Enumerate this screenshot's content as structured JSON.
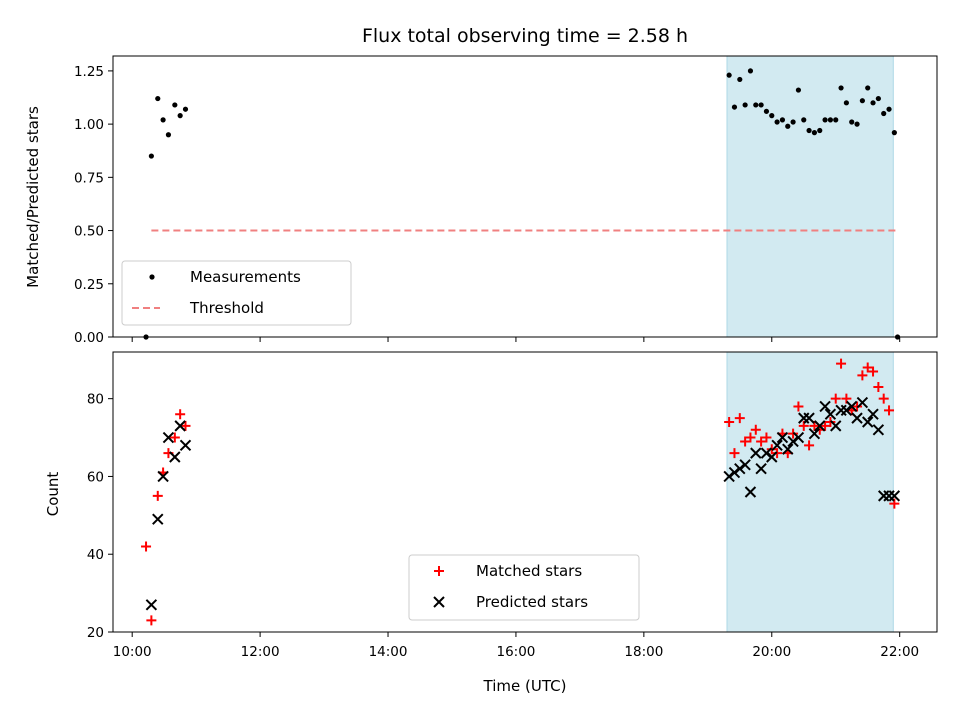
{
  "chart_data": {
    "title": "Flux total observing time = 2.58 h",
    "colors": {
      "measurement": "#000000",
      "threshold": "#f08080",
      "matched": "#ff0000",
      "predicted": "#000000",
      "shade": "#add8e6"
    },
    "x_axis": {
      "label": "Time (UTC)",
      "range": [
        "09:42",
        "22:35"
      ],
      "ticks": [
        "10:00",
        "12:00",
        "14:00",
        "16:00",
        "18:00",
        "20:00",
        "22:00"
      ]
    },
    "shaded_interval": [
      "19:18",
      "21:54"
    ],
    "panels": [
      {
        "type": "scatter",
        "ylabel": "Matched/Predicted stars",
        "ylim": [
          0,
          1.32
        ],
        "yticks": [
          "0.00",
          "0.25",
          "0.50",
          "0.75",
          "1.00",
          "1.25"
        ],
        "legend": {
          "position": "lower-left",
          "entries": [
            "Measurements",
            "Threshold"
          ]
        },
        "series": [
          {
            "name": "Measurements",
            "marker": "dot",
            "x": [
              "10:13",
              "10:18",
              "10:24",
              "10:29",
              "10:34",
              "10:40",
              "10:45",
              "10:50",
              "19:20",
              "19:25",
              "19:30",
              "19:35",
              "19:40",
              "19:45",
              "19:50",
              "19:55",
              "20:00",
              "20:05",
              "20:10",
              "20:15",
              "20:20",
              "20:25",
              "20:30",
              "20:35",
              "20:40",
              "20:45",
              "20:50",
              "20:55",
              "21:00",
              "21:05",
              "21:10",
              "21:15",
              "21:20",
              "21:25",
              "21:30",
              "21:35",
              "21:40",
              "21:45",
              "21:50",
              "21:55"
            ],
            "y": [
              0,
              0.85,
              1.12,
              1.02,
              0.95,
              1.09,
              1.04,
              1.07,
              1.23,
              1.08,
              1.21,
              1.09,
              1.25,
              1.09,
              1.09,
              1.06,
              1.04,
              1.01,
              1.02,
              0.99,
              1.01,
              1.16,
              1.02,
              0.97,
              0.96,
              0.97,
              1.02,
              1.02,
              1.02,
              1.17,
              1.1,
              1.01,
              1.0,
              1.11,
              1.17,
              1.1,
              1.12,
              1.05,
              1.07,
              0.96
            ]
          },
          {
            "name": "Threshold",
            "type": "line",
            "style": "dashed",
            "x": [
              "10:18",
              "21:58"
            ],
            "y": [
              0.5,
              0.5
            ]
          }
        ],
        "extra_points": [
          {
            "x": "21:58",
            "y": 0
          }
        ]
      },
      {
        "type": "scatter",
        "ylabel": "Count",
        "ylim": [
          20,
          92
        ],
        "yticks": [
          "20",
          "40",
          "60",
          "80"
        ],
        "legend": {
          "position": "lower-center",
          "entries": [
            "Matched stars",
            "Predicted stars"
          ]
        },
        "series": [
          {
            "name": "Matched stars",
            "marker": "plus",
            "x": [
              "10:13",
              "10:18",
              "10:24",
              "10:29",
              "10:34",
              "10:40",
              "10:45",
              "10:50",
              "19:20",
              "19:25",
              "19:30",
              "19:35",
              "19:40",
              "19:45",
              "19:50",
              "19:55",
              "20:00",
              "20:05",
              "20:10",
              "20:15",
              "20:20",
              "20:25",
              "20:30",
              "20:35",
              "20:40",
              "20:45",
              "20:50",
              "20:55",
              "21:00",
              "21:05",
              "21:10",
              "21:15",
              "21:20",
              "21:25",
              "21:30",
              "21:35",
              "21:40",
              "21:45",
              "21:50",
              "21:55"
            ],
            "y": [
              42,
              23,
              55,
              61,
              66,
              70,
              76,
              73,
              74,
              66,
              75,
              69,
              70,
              72,
              69,
              70,
              67,
              66,
              71,
              66,
              71,
              78,
              73,
              68,
              73,
              72,
              73,
              74,
              80,
              89,
              80,
              77,
              78,
              86,
              88,
              87,
              83,
              80,
              77,
              53
            ]
          },
          {
            "name": "Predicted stars",
            "marker": "x",
            "x": [
              "10:18",
              "10:24",
              "10:29",
              "10:34",
              "10:40",
              "10:45",
              "10:50",
              "19:20",
              "19:25",
              "19:30",
              "19:35",
              "19:40",
              "19:45",
              "19:50",
              "19:55",
              "20:00",
              "20:05",
              "20:10",
              "20:15",
              "20:20",
              "20:25",
              "20:30",
              "20:35",
              "20:40",
              "20:45",
              "20:50",
              "20:55",
              "21:00",
              "21:05",
              "21:10",
              "21:15",
              "21:20",
              "21:25",
              "21:30",
              "21:35",
              "21:40",
              "21:45",
              "21:50",
              "21:55"
            ],
            "y": [
              27,
              49,
              60,
              70,
              65,
              73,
              68,
              60,
              61,
              62,
              63,
              56,
              66,
              62,
              66,
              65,
              68,
              70,
              67,
              69,
              70,
              75,
              75,
              71,
              73,
              78,
              76,
              73,
              77,
              77,
              78,
              75,
              79,
              74,
              76,
              72,
              55,
              55,
              55
            ]
          }
        ]
      }
    ]
  }
}
